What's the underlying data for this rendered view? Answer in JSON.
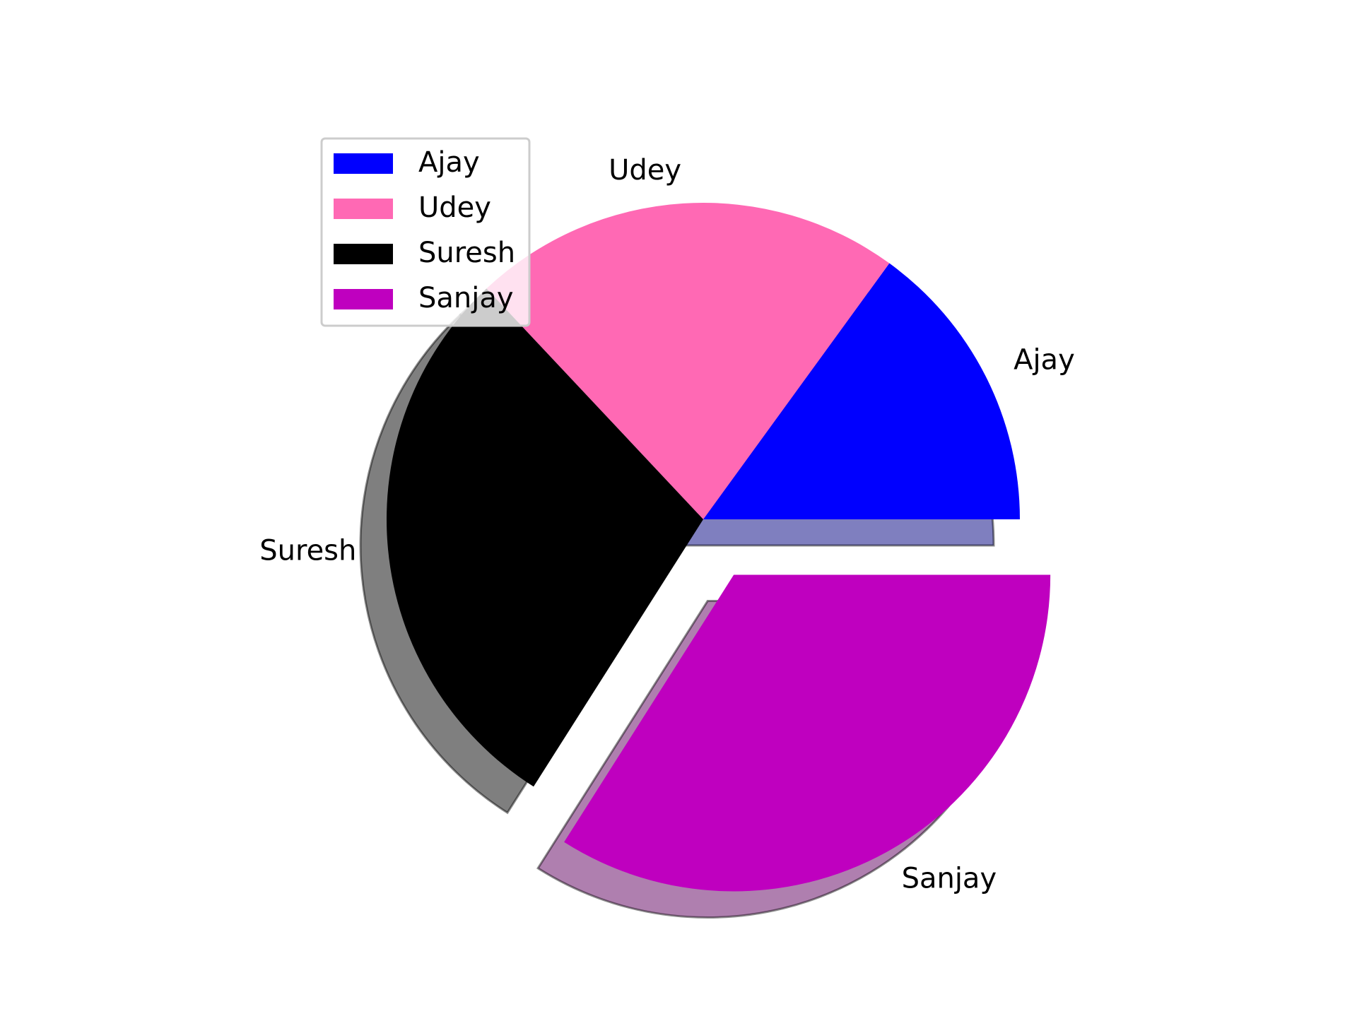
{
  "chart_data": {
    "type": "pie",
    "categories": [
      "Ajay",
      "Udey",
      "Suresh",
      "Sanjay"
    ],
    "values": [
      15,
      22,
      29,
      34
    ],
    "colors": [
      "#0000ff",
      "#ff69b4",
      "#000000",
      "#bf00bf"
    ],
    "explode": [
      0,
      0,
      0,
      0.2
    ],
    "start_angle": 0,
    "direction": "counterclockwise",
    "shadow": true,
    "legend": {
      "entries": [
        "Ajay",
        "Udey",
        "Suresh",
        "Sanjay"
      ],
      "position": "upper-left"
    }
  }
}
